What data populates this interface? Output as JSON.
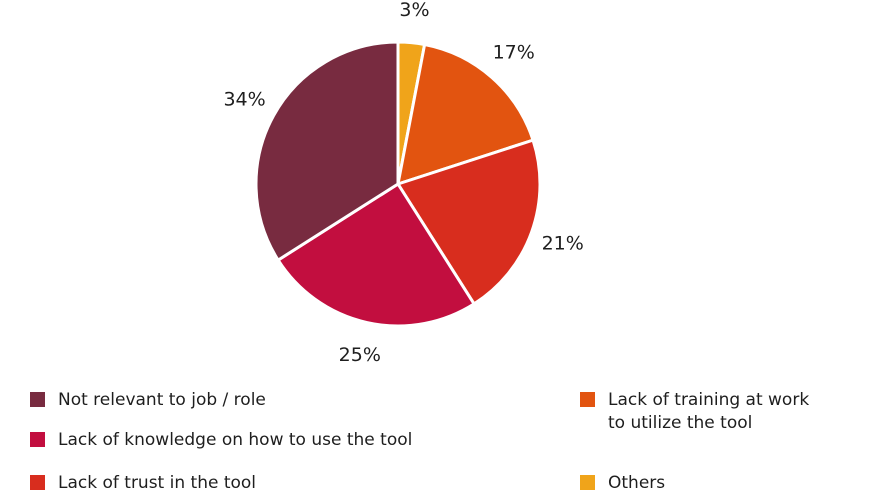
{
  "chart_data": {
    "type": "pie",
    "title": "",
    "start_angle_deg": 0,
    "direction": "clockwise",
    "slices": [
      {
        "label": "Others",
        "value": 3,
        "display": "3%",
        "color": "#f0a41a"
      },
      {
        "label": "Lack of training at work\nto utilize the tool",
        "value": 17,
        "display": "17%",
        "color": "#e25410"
      },
      {
        "label": "Lack of trust in the tool",
        "value": 21,
        "display": "21%",
        "color": "#d82d1e"
      },
      {
        "label": "Lack of knowledge on how to use the tool",
        "value": 25,
        "display": "25%",
        "color": "#c20e3f"
      },
      {
        "label": "Not relevant to job / role",
        "value": 34,
        "display": "34%",
        "color": "#782b40"
      }
    ],
    "legend_placement": "bottom"
  },
  "legend": {
    "left_column": [
      {
        "label": "Not relevant to job / role",
        "color": "#782b40"
      },
      {
        "label": "Lack of knowledge on how to use the tool",
        "color": "#c20e3f"
      },
      {
        "label": "Lack of trust in the tool",
        "color": "#d82d1e"
      }
    ],
    "right_column": [
      {
        "label": "Lack of training at work\nto utilize the tool",
        "color": "#e25410"
      },
      {
        "label": "Others",
        "color": "#f0a41a"
      }
    ]
  }
}
